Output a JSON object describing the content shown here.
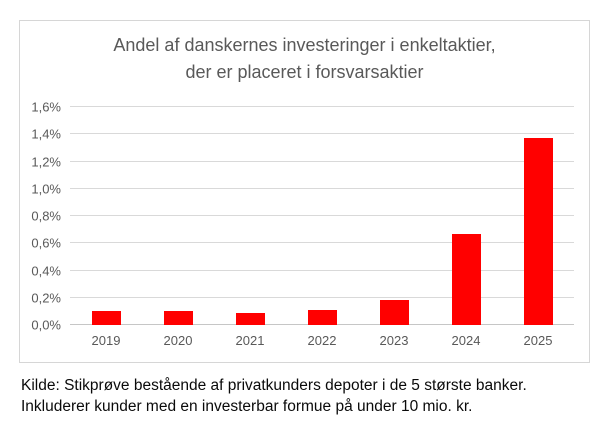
{
  "chart": {
    "title_lines": [
      "Andel af danskernes investeringer i enkeltaktier,",
      "der er placeret i forsvarsaktier"
    ]
  },
  "caption_lines": [
    "Kilde: Stikprøve bestående af privatkunders depoter i de 5 største banker.",
    "Inkluderer kunder med en investerbar formue på under 10 mio. kr."
  ],
  "chart_data": {
    "type": "bar",
    "title": "Andel af danskernes investeringer i enkeltaktier, der er placeret i forsvarsaktier",
    "categories": [
      "2019",
      "2020",
      "2021",
      "2022",
      "2023",
      "2024",
      "2025"
    ],
    "values": [
      0.1,
      0.1,
      0.09,
      0.11,
      0.18,
      0.67,
      1.37
    ],
    "xlabel": "",
    "ylabel": "",
    "ylim": [
      0,
      1.6
    ],
    "ytick_step": 0.2,
    "ytick_labels": [
      "0,0%",
      "0,2%",
      "0,4%",
      "0,6%",
      "0,8%",
      "1,0%",
      "1,2%",
      "1,4%",
      "1,6%"
    ],
    "value_format": "percent-comma-decimal",
    "grid": true,
    "legend": false,
    "bar_color": "#ff0000"
  },
  "colors": {
    "bar": "#ff0000",
    "title_text": "#595959",
    "axis_text": "#595959",
    "gridline": "#d9d9d9",
    "axis_line": "#c6c6c6",
    "chart_border": "#d6d6d6",
    "caption_text": "#0a0a0a",
    "background": "#ffffff"
  }
}
